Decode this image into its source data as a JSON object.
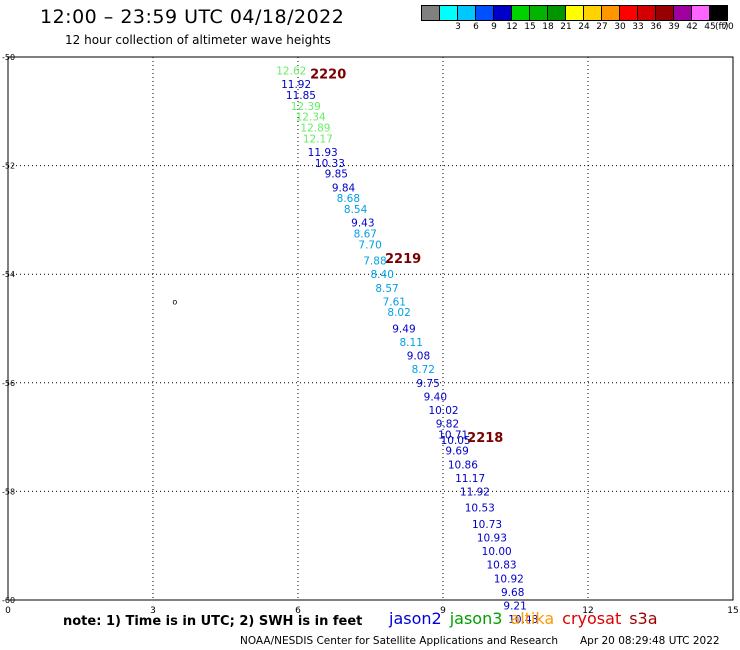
{
  "title": "12:00 – 23:59 UTC 04/18/2022",
  "subtitle": "12 hour collection of altimeter wave heights",
  "legend": {
    "unit": "(ft)",
    "bins": [
      {
        "label": "",
        "color": "#808080"
      },
      {
        "label": "3",
        "color": "#00ffff"
      },
      {
        "label": "6",
        "color": "#00c8ff"
      },
      {
        "label": "9",
        "color": "#0050ff"
      },
      {
        "label": "12",
        "color": "#0000c8"
      },
      {
        "label": "15",
        "color": "#00d200"
      },
      {
        "label": "18",
        "color": "#00b400"
      },
      {
        "label": "21",
        "color": "#009600"
      },
      {
        "label": "24",
        "color": "#ffff00"
      },
      {
        "label": "27",
        "color": "#ffd200"
      },
      {
        "label": "30",
        "color": "#ff9600"
      },
      {
        "label": "33",
        "color": "#ff0000"
      },
      {
        "label": "36",
        "color": "#d20000"
      },
      {
        "label": "39",
        "color": "#960000"
      },
      {
        "label": "42",
        "color": "#a000a0"
      },
      {
        "label": "45",
        "color": "#ff64ff"
      },
      {
        "label": "70",
        "color": "#000000"
      }
    ]
  },
  "chart_data": {
    "type": "scatter",
    "xlim": [
      0,
      15
    ],
    "ylim": [
      -60,
      -50
    ],
    "x_ticks": [
      "0",
      "3",
      "6",
      "9",
      "12",
      "15"
    ],
    "y_ticks": [
      "-50",
      "-52",
      "-54",
      "-56",
      "-58",
      "-60"
    ],
    "grid": true,
    "pass_labels": [
      {
        "text": "2220",
        "x": 6.25,
        "y": -50.3
      },
      {
        "text": "2219",
        "x": 7.8,
        "y": -53.7
      },
      {
        "text": "2218",
        "x": 9.5,
        "y": -57.0
      }
    ],
    "points": [
      {
        "x": 5.55,
        "y": -50.25,
        "v": "12.62",
        "c": "#66ee66"
      },
      {
        "x": 5.65,
        "y": -50.5,
        "v": "11.92",
        "c": "#0000c8"
      },
      {
        "x": 5.75,
        "y": -50.7,
        "v": "11.85",
        "c": "#0000c8"
      },
      {
        "x": 5.85,
        "y": -50.9,
        "v": "12.39",
        "c": "#66ee66"
      },
      {
        "x": 5.95,
        "y": -51.1,
        "v": "12.34",
        "c": "#66ee66"
      },
      {
        "x": 6.05,
        "y": -51.3,
        "v": "12.89",
        "c": "#66ee66"
      },
      {
        "x": 6.1,
        "y": -51.5,
        "v": "12.17",
        "c": "#66ee66"
      },
      {
        "x": 6.2,
        "y": -51.75,
        "v": "11.93",
        "c": "#0000c8"
      },
      {
        "x": 6.35,
        "y": -51.95,
        "v": "10.33",
        "c": "#0000c8"
      },
      {
        "x": 6.55,
        "y": -52.15,
        "v": "9.85",
        "c": "#0000c8"
      },
      {
        "x": 6.7,
        "y": -52.4,
        "v": "9.84",
        "c": "#0000c8"
      },
      {
        "x": 6.8,
        "y": -52.6,
        "v": "8.68",
        "c": "#00a0e6"
      },
      {
        "x": 6.95,
        "y": -52.8,
        "v": "8.54",
        "c": "#00a0e6"
      },
      {
        "x": 7.1,
        "y": -53.05,
        "v": "9.43",
        "c": "#0000c8"
      },
      {
        "x": 7.15,
        "y": -53.25,
        "v": "8.67",
        "c": "#00a0e6"
      },
      {
        "x": 7.25,
        "y": -53.45,
        "v": "7.70",
        "c": "#00a0e6"
      },
      {
        "x": 7.35,
        "y": -53.75,
        "v": "7.88",
        "c": "#00a0e6"
      },
      {
        "x": 7.5,
        "y": -54.0,
        "v": "8.40",
        "c": "#00a0e6"
      },
      {
        "x": 7.6,
        "y": -54.25,
        "v": "8.57",
        "c": "#00a0e6"
      },
      {
        "x": 7.75,
        "y": -54.5,
        "v": "7.61",
        "c": "#00a0e6"
      },
      {
        "x": 7.85,
        "y": -54.7,
        "v": "8.02",
        "c": "#00a0e6"
      },
      {
        "x": 7.95,
        "y": -55.0,
        "v": "9.49",
        "c": "#0000c8"
      },
      {
        "x": 8.1,
        "y": -55.25,
        "v": "8.11",
        "c": "#00a0e6"
      },
      {
        "x": 8.25,
        "y": -55.5,
        "v": "9.08",
        "c": "#0000c8"
      },
      {
        "x": 8.35,
        "y": -55.75,
        "v": "8.72",
        "c": "#00a0e6"
      },
      {
        "x": 8.45,
        "y": -56.0,
        "v": "9.75",
        "c": "#0000c8"
      },
      {
        "x": 8.6,
        "y": -56.25,
        "v": "9.40",
        "c": "#0000c8"
      },
      {
        "x": 8.7,
        "y": -56.5,
        "v": "10.02",
        "c": "#0000c8"
      },
      {
        "x": 8.85,
        "y": -56.75,
        "v": "9.82",
        "c": "#0000c8"
      },
      {
        "x": 8.9,
        "y": -56.95,
        "v": "10.71",
        "c": "#0000c8"
      },
      {
        "x": 8.95,
        "y": -57.05,
        "v": "10.05",
        "c": "#0000c8"
      },
      {
        "x": 9.05,
        "y": -57.25,
        "v": "9.69",
        "c": "#0000c8"
      },
      {
        "x": 9.1,
        "y": -57.5,
        "v": "10.86",
        "c": "#0000c8"
      },
      {
        "x": 9.25,
        "y": -57.75,
        "v": "11.17",
        "c": "#0000c8"
      },
      {
        "x": 9.35,
        "y": -58.0,
        "v": "11.92",
        "c": "#0000c8"
      },
      {
        "x": 9.45,
        "y": -58.3,
        "v": "10.53",
        "c": "#0000c8"
      },
      {
        "x": 9.6,
        "y": -58.6,
        "v": "10.73",
        "c": "#0000c8"
      },
      {
        "x": 9.7,
        "y": -58.85,
        "v": "10.93",
        "c": "#0000c8"
      },
      {
        "x": 9.8,
        "y": -59.1,
        "v": "10.00",
        "c": "#0000c8"
      },
      {
        "x": 9.9,
        "y": -59.35,
        "v": "10.83",
        "c": "#0000c8"
      },
      {
        "x": 10.05,
        "y": -59.6,
        "v": "10.92",
        "c": "#0000c8"
      },
      {
        "x": 10.2,
        "y": -59.85,
        "v": "9.68",
        "c": "#0000c8"
      },
      {
        "x": 10.25,
        "y": -60.1,
        "v": "9.21",
        "c": "#0000c8"
      },
      {
        "x": 10.35,
        "y": -60.35,
        "v": "10.43",
        "c": "#0000c8"
      }
    ],
    "stray_mark": {
      "x": 3.4,
      "y": -54.5,
      "text": "o"
    }
  },
  "footer": {
    "note": "note: 1) Time is in UTC; 2) SWH is in feet",
    "satellites": [
      {
        "name": "jason2",
        "color": "#0000dd"
      },
      {
        "name": "jason3",
        "color": "#00a000"
      },
      {
        "name": "altika",
        "color": "#ff9900"
      },
      {
        "name": "cryosat",
        "color": "#dd0000"
      },
      {
        "name": "s3a",
        "color": "#990000"
      }
    ],
    "credit": "NOAA/NESDIS Center for Satellite Applications and Research",
    "timestamp": "Apr 20 08:29:48 UTC 2022"
  }
}
